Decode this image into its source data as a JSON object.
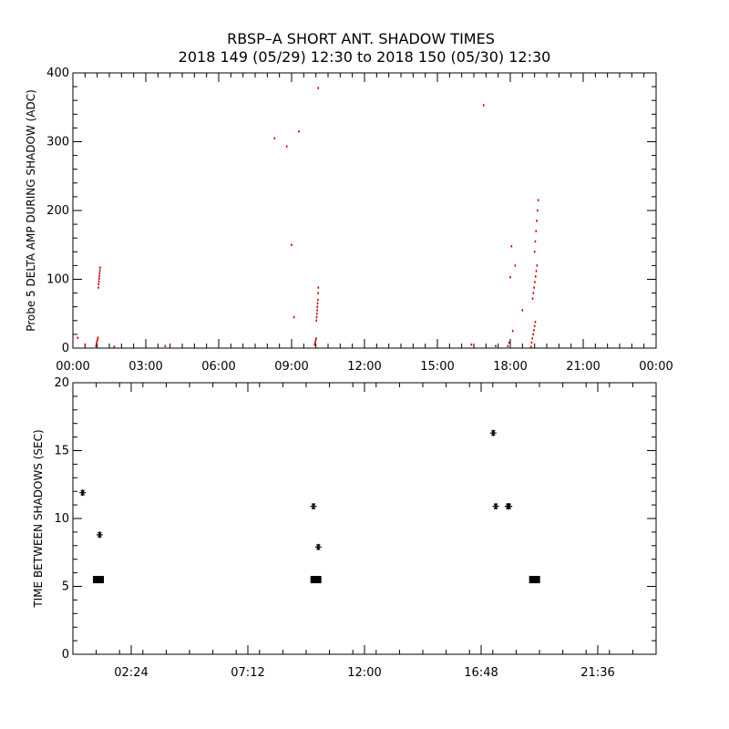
{
  "title": "RBSP–A SHORT ANT. SHADOW TIMES",
  "subtitle": "2018 149 (05/29) 12:30 to 2018 150 (05/30) 12:30",
  "colors": {
    "points": "#cc0000",
    "markers": "#000000"
  },
  "chart_data": [
    {
      "type": "scatter",
      "ylabel": "Probe 5 DELTA AMP DURING SHADOW (ADC)",
      "xlim": [
        0,
        24
      ],
      "ylim": [
        0,
        400
      ],
      "x_ticks": [
        "00:00",
        "03:00",
        "06:00",
        "09:00",
        "12:00",
        "15:00",
        "18:00",
        "21:00",
        "00:00"
      ],
      "y_ticks": [
        0,
        100,
        200,
        300,
        400
      ],
      "grid": false,
      "series": [
        {
          "color": "#cc0000",
          "points": [
            [
              0.2,
              15
            ],
            [
              0.5,
              5
            ],
            [
              0.95,
              3
            ],
            [
              0.97,
              6
            ],
            [
              0.99,
              9
            ],
            [
              1.01,
              12
            ],
            [
              1.03,
              15
            ],
            [
              1.05,
              88
            ],
            [
              1.06,
              93
            ],
            [
              1.07,
              97
            ],
            [
              1.08,
              101
            ],
            [
              1.09,
              105
            ],
            [
              1.1,
              109
            ],
            [
              1.11,
              113
            ],
            [
              1.12,
              117
            ],
            [
              1.7,
              2
            ],
            [
              3.8,
              3
            ],
            [
              8.3,
              305
            ],
            [
              8.8,
              293
            ],
            [
              9.0,
              150
            ],
            [
              9.1,
              45
            ],
            [
              9.3,
              315
            ],
            [
              9.95,
              5
            ],
            [
              9.97,
              8
            ],
            [
              9.99,
              11
            ],
            [
              10.01,
              14
            ],
            [
              10.02,
              40
            ],
            [
              10.03,
              45
            ],
            [
              10.04,
              50
            ],
            [
              10.05,
              55
            ],
            [
              10.06,
              60
            ],
            [
              10.07,
              65
            ],
            [
              10.08,
              70
            ],
            [
              10.09,
              80
            ],
            [
              10.1,
              88
            ],
            [
              10.1,
              378
            ],
            [
              16.4,
              5
            ],
            [
              16.9,
              353
            ],
            [
              17.4,
              3
            ],
            [
              17.9,
              3
            ],
            [
              17.95,
              8
            ],
            [
              18.0,
              103
            ],
            [
              18.05,
              148
            ],
            [
              18.1,
              25
            ],
            [
              18.2,
              120
            ],
            [
              18.5,
              55
            ],
            [
              18.85,
              2
            ],
            [
              18.88,
              8
            ],
            [
              18.91,
              14
            ],
            [
              18.94,
              20
            ],
            [
              18.97,
              26
            ],
            [
              19.0,
              32
            ],
            [
              19.03,
              38
            ],
            [
              18.92,
              72
            ],
            [
              18.95,
              80
            ],
            [
              18.98,
              88
            ],
            [
              19.01,
              96
            ],
            [
              19.04,
              104
            ],
            [
              19.07,
              112
            ],
            [
              19.1,
              120
            ],
            [
              19.0,
              140
            ],
            [
              19.03,
              155
            ],
            [
              19.06,
              170
            ],
            [
              19.09,
              185
            ],
            [
              19.12,
              200
            ],
            [
              19.15,
              215
            ]
          ]
        }
      ]
    },
    {
      "type": "scatter",
      "ylabel": "TIME BETWEEN SHADOWS (SEC)",
      "xlim": [
        0,
        24
      ],
      "ylim": [
        0,
        20
      ],
      "x_ticks": [
        "02:24",
        "07:12",
        "12:00",
        "16:48",
        "21:36"
      ],
      "y_ticks": [
        0,
        5,
        10,
        15,
        20
      ],
      "grid": false,
      "series": [
        {
          "marker": "asterisk",
          "points": [
            [
              0.4,
              11.9
            ],
            [
              1.1,
              8.8
            ],
            [
              9.9,
              10.9
            ],
            [
              10.1,
              7.9
            ],
            [
              17.3,
              16.3
            ],
            [
              17.4,
              10.9
            ],
            [
              17.9,
              10.9
            ],
            [
              17.95,
              10.9
            ]
          ]
        },
        {
          "marker": "square",
          "points": [
            [
              1.05,
              5.5
            ],
            [
              10.0,
              5.5
            ],
            [
              19.0,
              5.5
            ]
          ]
        }
      ]
    }
  ]
}
